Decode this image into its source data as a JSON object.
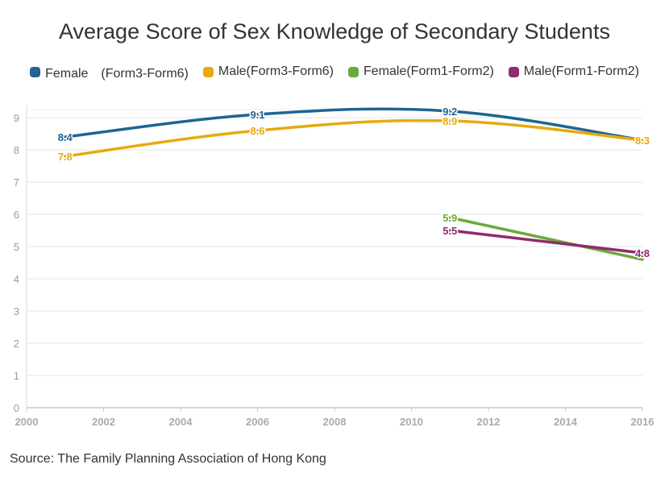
{
  "chart_data": {
    "type": "line",
    "title": "Average Score of Sex Knowledge of Secondary Students",
    "xlabel": "",
    "ylabel": "",
    "xlim": [
      2000,
      2016
    ],
    "x_ticks": [
      "2000",
      "2002",
      "2004",
      "2006",
      "2008",
      "2010",
      "2012",
      "2014",
      "2016"
    ],
    "y_ticks": [
      "0",
      "1",
      "2",
      "3",
      "4",
      "5",
      "6",
      "7",
      "8",
      "9"
    ],
    "ylim": [
      0,
      9.5
    ],
    "grid": true,
    "legend_position": "top",
    "series": [
      {
        "name": "Female　(Form3-Form6)",
        "color": "#1f6591",
        "points": [
          {
            "x": 2001,
            "y": 8.4,
            "label": "8.4"
          },
          {
            "x": 2006,
            "y": 9.1,
            "label": "9.1"
          },
          {
            "x": 2011,
            "y": 9.2,
            "label": "9.2"
          },
          {
            "x": 2016,
            "y": 8.3,
            "label": ""
          }
        ]
      },
      {
        "name": "Male(Form3-Form6)",
        "color": "#e8a90e",
        "points": [
          {
            "x": 2001,
            "y": 7.8,
            "label": "7.8"
          },
          {
            "x": 2006,
            "y": 8.6,
            "label": "8.6"
          },
          {
            "x": 2011,
            "y": 8.9,
            "label": "8.9"
          },
          {
            "x": 2016,
            "y": 8.3,
            "label": "8.3"
          }
        ]
      },
      {
        "name": "Female(Form1-Form2)",
        "color": "#6aaa3a",
        "points": [
          {
            "x": 2011,
            "y": 5.9,
            "label": "5.9"
          },
          {
            "x": 2016,
            "y": 4.6,
            "label": ""
          }
        ]
      },
      {
        "name": "Male(Form1-Form2)",
        "color": "#8e2b6e",
        "points": [
          {
            "x": 2011,
            "y": 5.5,
            "label": "5.5"
          },
          {
            "x": 2016,
            "y": 4.8,
            "label": "4.8"
          }
        ]
      }
    ]
  },
  "source": "Source: The Family Planning Association of Hong Kong"
}
